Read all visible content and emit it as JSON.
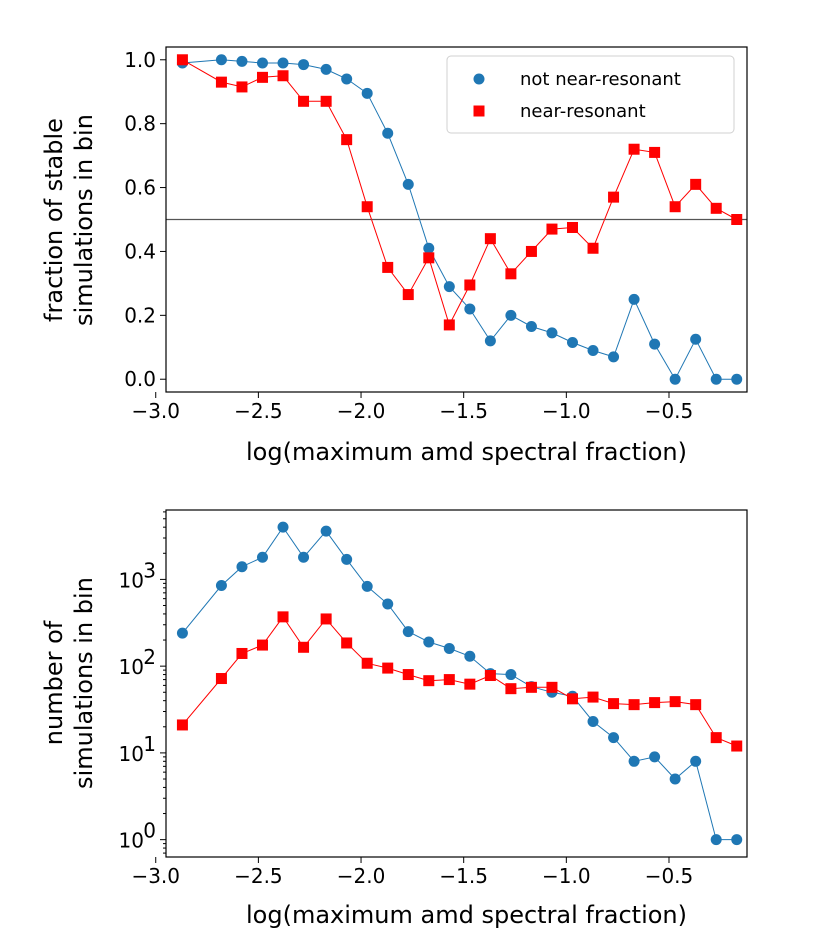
{
  "chart_data": [
    {
      "type": "line",
      "xlabel": "log(maximum amd spectral fraction)",
      "ylabel_lines": [
        "fraction of stable",
        "simulations in bin"
      ],
      "xlim": [
        -2.95,
        -0.12
      ],
      "ylim": [
        -0.04,
        1.04
      ],
      "xticks": [
        -3.0,
        -2.5,
        -2.0,
        -1.5,
        -1.0,
        -0.5
      ],
      "xtick_labels": [
        "−3.0",
        "−2.5",
        "−2.0",
        "−1.5",
        "−1.0",
        "−0.5"
      ],
      "yticks": [
        0.0,
        0.2,
        0.4,
        0.6,
        0.8,
        1.0
      ],
      "ytick_labels": [
        "0.0",
        "0.2",
        "0.4",
        "0.6",
        "0.8",
        "1.0"
      ],
      "hline": 0.5,
      "legend_position": "top-right",
      "series": [
        {
          "name": "not near-resonant",
          "marker": "circle",
          "color": "#1f77b4",
          "x": [
            -2.87,
            -2.68,
            -2.58,
            -2.48,
            -2.38,
            -2.28,
            -2.17,
            -2.07,
            -1.97,
            -1.87,
            -1.77,
            -1.67,
            -1.57,
            -1.47,
            -1.37,
            -1.27,
            -1.17,
            -1.07,
            -0.97,
            -0.87,
            -0.77,
            -0.67,
            -0.57,
            -0.47,
            -0.37,
            -0.27,
            -0.17
          ],
          "y": [
            0.99,
            1.0,
            0.995,
            0.99,
            0.99,
            0.985,
            0.97,
            0.94,
            0.895,
            0.77,
            0.61,
            0.41,
            0.29,
            0.22,
            0.12,
            0.2,
            0.165,
            0.145,
            0.115,
            0.09,
            0.07,
            0.25,
            0.11,
            0.0,
            0.125,
            0.0,
            0.0
          ]
        },
        {
          "name": "near-resonant",
          "marker": "square",
          "color": "#ff0000",
          "x": [
            -2.87,
            -2.68,
            -2.58,
            -2.48,
            -2.38,
            -2.28,
            -2.17,
            -2.07,
            -1.97,
            -1.87,
            -1.77,
            -1.67,
            -1.57,
            -1.47,
            -1.37,
            -1.27,
            -1.17,
            -1.07,
            -0.97,
            -0.87,
            -0.77,
            -0.67,
            -0.57,
            -0.47,
            -0.37,
            -0.27,
            -0.17
          ],
          "y": [
            1.0,
            0.93,
            0.915,
            0.945,
            0.95,
            0.87,
            0.87,
            0.75,
            0.54,
            0.35,
            0.265,
            0.38,
            0.17,
            0.295,
            0.44,
            0.33,
            0.4,
            0.47,
            0.475,
            0.41,
            0.57,
            0.72,
            0.71,
            0.54,
            0.61,
            0.535,
            0.5
          ]
        }
      ]
    },
    {
      "type": "line",
      "yscale": "log",
      "xlabel": "log(maximum amd spectral fraction)",
      "ylabel_lines": [
        "number of",
        "simulations in bin"
      ],
      "xlim": [
        -2.95,
        -0.12
      ],
      "ylim_log10": [
        -0.2,
        3.8
      ],
      "xticks": [
        -3.0,
        -2.5,
        -2.0,
        -1.5,
        -1.0,
        -0.5
      ],
      "xtick_labels": [
        "−3.0",
        "−2.5",
        "−2.0",
        "−1.5",
        "−1.0",
        "−0.5"
      ],
      "yticks": [
        1,
        10,
        100,
        1000
      ],
      "ytick_labels": [
        {
          "base": "10",
          "exp": "0"
        },
        {
          "base": "10",
          "exp": "1"
        },
        {
          "base": "10",
          "exp": "2"
        },
        {
          "base": "10",
          "exp": "3"
        }
      ],
      "series": [
        {
          "name": "not near-resonant",
          "marker": "circle",
          "color": "#1f77b4",
          "x": [
            -2.87,
            -2.68,
            -2.58,
            -2.48,
            -2.38,
            -2.28,
            -2.17,
            -2.07,
            -1.97,
            -1.87,
            -1.77,
            -1.67,
            -1.57,
            -1.47,
            -1.37,
            -1.27,
            -1.17,
            -1.07,
            -0.97,
            -0.87,
            -0.77,
            -0.67,
            -0.57,
            -0.47,
            -0.37,
            -0.27,
            -0.17
          ],
          "y": [
            240,
            850,
            1400,
            1800,
            4000,
            1800,
            3600,
            1700,
            830,
            520,
            250,
            190,
            160,
            130,
            82,
            80,
            58,
            50,
            45,
            23,
            15,
            8,
            9,
            5,
            8,
            1,
            1
          ]
        },
        {
          "name": "near-resonant",
          "marker": "square",
          "color": "#ff0000",
          "x": [
            -2.87,
            -2.68,
            -2.58,
            -2.48,
            -2.38,
            -2.28,
            -2.17,
            -2.07,
            -1.97,
            -1.87,
            -1.77,
            -1.67,
            -1.57,
            -1.47,
            -1.37,
            -1.27,
            -1.17,
            -1.07,
            -0.97,
            -0.87,
            -0.77,
            -0.67,
            -0.57,
            -0.47,
            -0.37,
            -0.27,
            -0.17
          ],
          "y": [
            21,
            72,
            140,
            175,
            370,
            165,
            350,
            185,
            108,
            95,
            80,
            68,
            70,
            62,
            78,
            55,
            57,
            57,
            42,
            44,
            37,
            36,
            38,
            39,
            36,
            15,
            12
          ]
        }
      ]
    }
  ]
}
